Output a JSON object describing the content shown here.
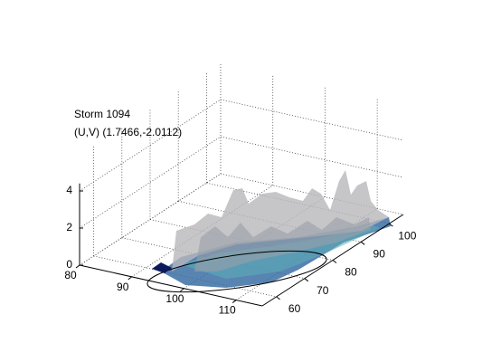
{
  "chart_data": {
    "type": "surface",
    "title": [
      "Storm 1094",
      "(U,V) (1.7466,-2.0112)"
    ],
    "xlim": [
      80,
      115
    ],
    "xticks": [
      80,
      90,
      100,
      110
    ],
    "ylim": [
      55,
      105
    ],
    "yticks": [
      60,
      70,
      80,
      90,
      100
    ],
    "zlim": [
      0,
      6
    ],
    "zticks": [
      0,
      2,
      4
    ],
    "grid": true
  }
}
